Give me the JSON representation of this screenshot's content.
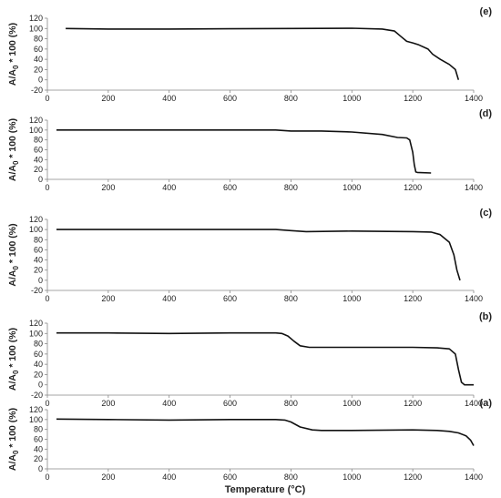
{
  "figure": {
    "xlabel": "Temperature (°C)"
  },
  "chart_data": [
    {
      "type": "line",
      "panel_label": "(e)",
      "ylabel_main": "A/A",
      "ylabel_sub": "0",
      "ylabel_tail": " * 100 (%)",
      "xlim": [
        0,
        1400
      ],
      "ylim": [
        -20,
        120
      ],
      "xticks": [
        "0",
        "200",
        "400",
        "600",
        "800",
        "1000",
        "1200",
        "1400"
      ],
      "yticks": [
        "-20",
        "0",
        "20",
        "40",
        "60",
        "80",
        "100",
        "120"
      ],
      "series": [
        {
          "x": [
            60,
            200,
            400,
            600,
            800,
            1000,
            1100,
            1140,
            1160,
            1180,
            1200,
            1220,
            1250,
            1265,
            1290,
            1320,
            1340,
            1350
          ],
          "y": [
            100,
            99,
            99,
            99.5,
            100,
            100.5,
            99,
            95,
            85,
            75,
            72,
            68,
            60,
            50,
            40,
            30,
            20,
            0
          ]
        }
      ]
    },
    {
      "type": "line",
      "panel_label": "(d)",
      "ylabel_main": "A/A",
      "ylabel_sub": "0",
      "ylabel_tail": " * 100 (%)",
      "xlim": [
        0,
        1400
      ],
      "ylim": [
        0,
        120
      ],
      "xticks": [
        "0",
        "200",
        "400",
        "600",
        "800",
        "1000",
        "1200",
        "1400"
      ],
      "yticks": [
        "0",
        "20",
        "40",
        "60",
        "80",
        "100",
        "120"
      ],
      "series": [
        {
          "x": [
            30,
            200,
            400,
            600,
            750,
            800,
            900,
            1000,
            1100,
            1150,
            1180,
            1190,
            1200,
            1205,
            1210,
            1215,
            1260
          ],
          "y": [
            100,
            100,
            100,
            100,
            100,
            98,
            98,
            96,
            91,
            85,
            84,
            80,
            55,
            30,
            15,
            14,
            13
          ]
        }
      ]
    },
    {
      "type": "line",
      "panel_label": "(c)",
      "ylabel_main": "A/A",
      "ylabel_sub": "0",
      "ylabel_tail": " * 100 (%)",
      "xlim": [
        0,
        1400
      ],
      "ylim": [
        -20,
        120
      ],
      "xticks": [
        "0",
        "200",
        "400",
        "600",
        "800",
        "1000",
        "1200",
        "1400"
      ],
      "yticks": [
        "-20",
        "0",
        "20",
        "40",
        "60",
        "80",
        "100",
        "120"
      ],
      "series": [
        {
          "x": [
            30,
            200,
            400,
            600,
            750,
            800,
            850,
            1000,
            1200,
            1260,
            1290,
            1320,
            1335,
            1345,
            1355
          ],
          "y": [
            100,
            100,
            100,
            100,
            100,
            98,
            96,
            97,
            96,
            95,
            90,
            75,
            50,
            20,
            0
          ]
        }
      ]
    },
    {
      "type": "line",
      "panel_label": "(b)",
      "ylabel_main": "A/A",
      "ylabel_sub": "0",
      "ylabel_tail": " * 100 (%)",
      "xlim": [
        0,
        1400
      ],
      "ylim": [
        -20,
        120
      ],
      "xticks": [
        "0",
        "200",
        "400",
        "600",
        "800",
        "1000",
        "1200",
        "1400"
      ],
      "yticks": [
        "-20",
        "0",
        "20",
        "40",
        "60",
        "80",
        "100",
        "120"
      ],
      "series": [
        {
          "x": [
            30,
            200,
            400,
            600,
            750,
            770,
            790,
            810,
            830,
            860,
            900,
            1000,
            1200,
            1280,
            1320,
            1340,
            1350,
            1360,
            1370,
            1400
          ],
          "y": [
            101,
            101,
            100,
            101,
            101,
            100,
            95,
            85,
            76,
            73,
            73,
            73,
            73,
            72,
            70,
            60,
            30,
            5,
            0,
            0
          ]
        }
      ]
    },
    {
      "type": "line",
      "panel_label": "(a)",
      "ylabel_main": "A/A",
      "ylabel_sub": "0",
      "ylabel_tail": " * 100 (%)",
      "xlim": [
        0,
        1400
      ],
      "ylim": [
        0,
        120
      ],
      "xticks": [
        "0",
        "200",
        "400",
        "600",
        "800",
        "1000",
        "1200",
        "1400"
      ],
      "yticks": [
        "0",
        "20",
        "40",
        "60",
        "80",
        "100",
        "120"
      ],
      "series": [
        {
          "x": [
            30,
            200,
            400,
            600,
            750,
            780,
            800,
            830,
            870,
            900,
            1000,
            1200,
            1280,
            1320,
            1350,
            1375,
            1390,
            1400
          ],
          "y": [
            101,
            100,
            99,
            100,
            100,
            99,
            95,
            85,
            79,
            78,
            78,
            79,
            78,
            76,
            73,
            67,
            58,
            47
          ]
        }
      ]
    }
  ]
}
